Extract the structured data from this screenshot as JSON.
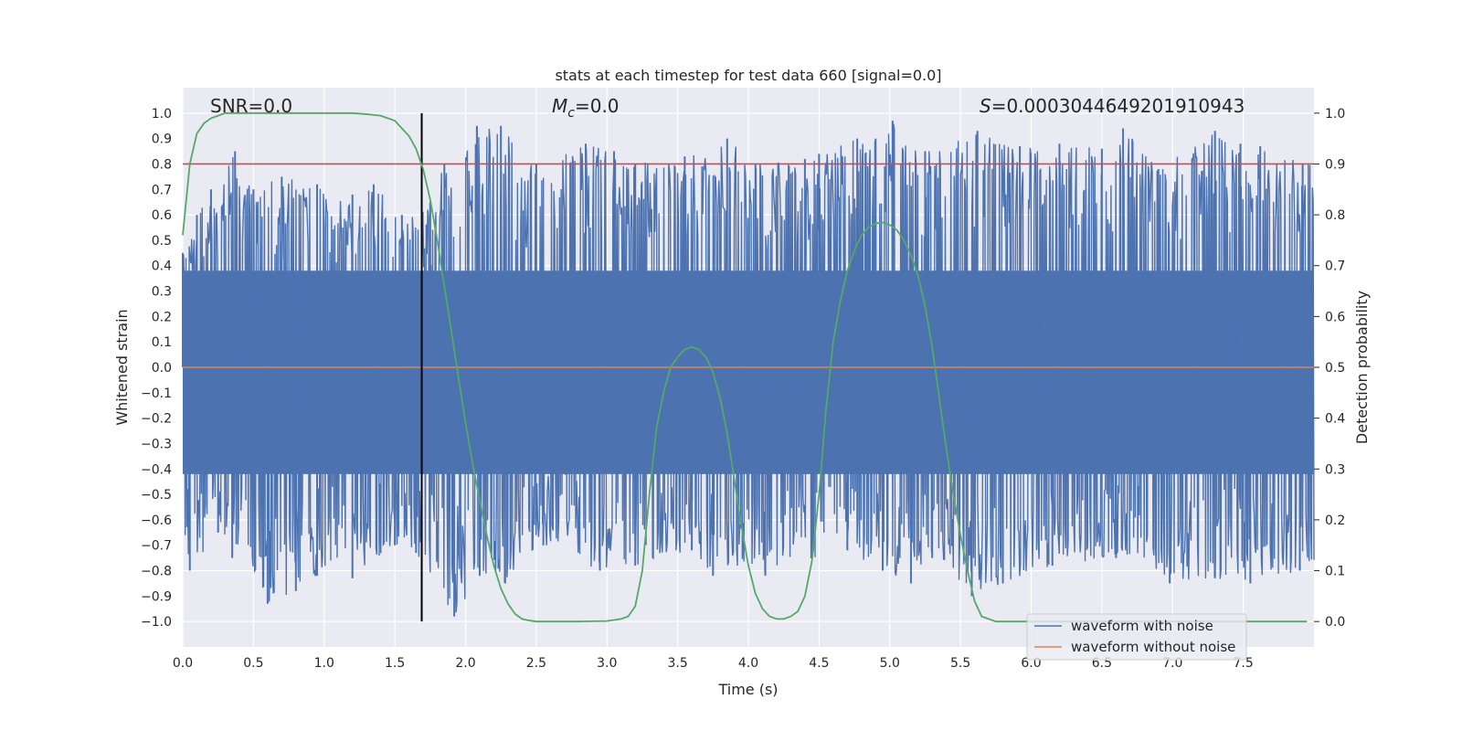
{
  "chart_data": {
    "type": "line",
    "title": "stats at each timestep for test data 660 [signal=0.0]",
    "xlabel": "Time (s)",
    "ylabel": "Whitened strain",
    "y2label": "Detection probability",
    "xlim": [
      0.0,
      8.0
    ],
    "ylim": [
      -1.1,
      1.1
    ],
    "y2lim": [
      -0.05,
      1.05
    ],
    "x_ticks": [
      0.0,
      0.5,
      1.0,
      1.5,
      2.0,
      2.5,
      3.0,
      3.5,
      4.0,
      4.5,
      5.0,
      5.5,
      6.0,
      6.5,
      7.0,
      7.5
    ],
    "x_tick_labels": [
      "0.0",
      "0.5",
      "1.0",
      "1.5",
      "2.0",
      "2.5",
      "3.0",
      "3.5",
      "4.0",
      "4.5",
      "5.0",
      "5.5",
      "6.0",
      "6.5",
      "7.0",
      "7.5"
    ],
    "y_ticks": [
      1.0,
      0.9,
      0.8,
      0.7,
      0.6,
      0.5,
      0.4,
      0.3,
      0.2,
      0.1,
      0.0,
      -0.1,
      -0.2,
      -0.3,
      -0.4,
      -0.5,
      -0.6,
      -0.7,
      -0.8,
      -0.9,
      -1.0
    ],
    "y_tick_labels": [
      "1.0",
      "0.9",
      "0.8",
      "0.7",
      "0.6",
      "0.5",
      "0.4",
      "0.3",
      "0.2",
      "0.1",
      "0.0",
      "−0.1",
      "−0.2",
      "−0.3",
      "−0.4",
      "−0.5",
      "−0.6",
      "−0.7",
      "−0.8",
      "−0.9",
      "−1.0"
    ],
    "y2_ticks": [
      1.0,
      0.9,
      0.8,
      0.7,
      0.6,
      0.5,
      0.4,
      0.3,
      0.2,
      0.1,
      0.0
    ],
    "y2_tick_labels": [
      "1.0",
      "0.9",
      "0.8",
      "0.7",
      "0.6",
      "0.5",
      "0.4",
      "0.3",
      "0.2",
      "0.1",
      "0.0"
    ],
    "grid": true,
    "legend": {
      "placement": "lower-right",
      "entries": [
        {
          "name": "waveform with noise",
          "color": "#4c72b0"
        },
        {
          "name": "waveform without noise",
          "color": "#dd8452"
        }
      ]
    },
    "annotations": {
      "snr": "SNR=0.0",
      "mc_symbol": "M",
      "mc_sub": "c",
      "mc_value": "=0.0",
      "s_symbol": "S",
      "s_value": "=0.0003044649201910943"
    },
    "threshold_prob": 0.9,
    "threshold_color": "#c44e52",
    "marker_time": 1.69,
    "marker_color": "#000000",
    "waveform_without_noise_value": 0.0,
    "noise_envelope": {
      "upper_peaks": [
        [
          0.0,
          0.45
        ],
        [
          0.1,
          0.6
        ],
        [
          0.2,
          0.7
        ],
        [
          0.37,
          0.85
        ],
        [
          0.5,
          0.7
        ],
        [
          0.7,
          0.75
        ],
        [
          0.95,
          0.72
        ],
        [
          1.2,
          0.68
        ],
        [
          1.35,
          0.72
        ],
        [
          1.55,
          0.6
        ],
        [
          1.75,
          0.65
        ],
        [
          1.85,
          0.8
        ],
        [
          2.08,
          0.95
        ],
        [
          2.25,
          0.95
        ],
        [
          2.5,
          0.8
        ],
        [
          2.85,
          0.88
        ],
        [
          3.05,
          0.85
        ],
        [
          3.2,
          0.8
        ],
        [
          3.55,
          0.83
        ],
        [
          3.85,
          0.9
        ],
        [
          4.05,
          0.8
        ],
        [
          4.4,
          0.82
        ],
        [
          4.5,
          0.84
        ],
        [
          4.77,
          0.9
        ],
        [
          4.9,
          0.9
        ],
        [
          5.02,
          0.97
        ],
        [
          5.25,
          0.85
        ],
        [
          5.62,
          0.93
        ],
        [
          5.92,
          0.87
        ],
        [
          6.2,
          0.88
        ],
        [
          6.5,
          0.86
        ],
        [
          6.65,
          0.94
        ],
        [
          6.9,
          0.78
        ],
        [
          7.3,
          0.93
        ],
        [
          7.48,
          0.88
        ],
        [
          7.62,
          0.87
        ],
        [
          7.92,
          0.8
        ]
      ],
      "lower_peaks": [
        [
          0.05,
          -0.8
        ],
        [
          0.25,
          -0.65
        ],
        [
          0.35,
          -0.75
        ],
        [
          0.6,
          -0.93
        ],
        [
          0.8,
          -0.88
        ],
        [
          0.95,
          -0.82
        ],
        [
          1.2,
          -0.83
        ],
        [
          1.5,
          -0.7
        ],
        [
          1.65,
          -0.73
        ],
        [
          1.92,
          -0.98
        ],
        [
          2.1,
          -0.82
        ],
        [
          2.28,
          -0.85
        ],
        [
          2.55,
          -0.7
        ],
        [
          2.95,
          -0.8
        ],
        [
          3.2,
          -0.78
        ],
        [
          3.6,
          -0.72
        ],
        [
          3.75,
          -0.82
        ],
        [
          4.12,
          -0.82
        ],
        [
          4.45,
          -0.75
        ],
        [
          4.7,
          -0.72
        ],
        [
          4.95,
          -0.8
        ],
        [
          5.15,
          -0.85
        ],
        [
          5.3,
          -0.75
        ],
        [
          5.58,
          -0.9
        ],
        [
          5.8,
          -0.85
        ],
        [
          6.15,
          -0.78
        ],
        [
          6.6,
          -0.75
        ],
        [
          6.98,
          -0.85
        ],
        [
          7.3,
          -0.83
        ],
        [
          7.55,
          -0.85
        ],
        [
          7.9,
          -0.8
        ]
      ]
    },
    "series": [
      {
        "name": "waveform with noise",
        "axis": "left",
        "color": "#4c72b0",
        "x": [],
        "y": []
      },
      {
        "name": "waveform without noise",
        "axis": "left",
        "color": "#dd8452",
        "x": [
          0.0,
          8.0
        ],
        "y": [
          0.0,
          0.0
        ]
      },
      {
        "axis": "right",
        "color": "#55a868",
        "x": [
          0.0,
          0.05,
          0.1,
          0.15,
          0.2,
          0.25,
          0.3,
          0.35,
          0.4,
          0.5,
          0.6,
          0.8,
          1.0,
          1.2,
          1.3,
          1.4,
          1.45,
          1.5,
          1.55,
          1.6,
          1.65,
          1.7,
          1.75,
          1.8,
          1.85,
          1.9,
          1.95,
          2.0,
          2.05,
          2.1,
          2.15,
          2.2,
          2.25,
          2.3,
          2.35,
          2.4,
          2.45,
          2.5,
          2.6,
          2.8,
          3.0,
          3.1,
          3.15,
          3.2,
          3.25,
          3.3,
          3.35,
          3.4,
          3.45,
          3.5,
          3.55,
          3.6,
          3.65,
          3.7,
          3.75,
          3.8,
          3.85,
          3.9,
          3.95,
          4.0,
          4.05,
          4.1,
          4.15,
          4.2,
          4.25,
          4.3,
          4.35,
          4.4,
          4.45,
          4.5,
          4.55,
          4.6,
          4.65,
          4.7,
          4.75,
          4.8,
          4.85,
          4.9,
          4.95,
          5.0,
          5.05,
          5.1,
          5.15,
          5.2,
          5.25,
          5.3,
          5.35,
          5.4,
          5.45,
          5.5,
          5.55,
          5.6,
          5.65,
          5.7,
          5.75,
          5.8,
          5.85,
          5.9,
          6.0,
          6.5,
          7.0,
          7.5,
          7.95
        ],
        "y": [
          0.76,
          0.9,
          0.96,
          0.98,
          0.99,
          0.995,
          1.0,
          1.0,
          1.0,
          1.0,
          1.0,
          1.0,
          1.0,
          1.0,
          0.998,
          0.995,
          0.99,
          0.985,
          0.97,
          0.955,
          0.93,
          0.89,
          0.83,
          0.75,
          0.66,
          0.57,
          0.48,
          0.39,
          0.31,
          0.24,
          0.17,
          0.11,
          0.065,
          0.035,
          0.015,
          0.005,
          0.002,
          0.0,
          0.0,
          0.0,
          0.001,
          0.005,
          0.01,
          0.03,
          0.1,
          0.25,
          0.38,
          0.45,
          0.5,
          0.52,
          0.535,
          0.54,
          0.535,
          0.52,
          0.49,
          0.44,
          0.37,
          0.28,
          0.19,
          0.11,
          0.055,
          0.025,
          0.01,
          0.005,
          0.005,
          0.01,
          0.02,
          0.05,
          0.12,
          0.25,
          0.42,
          0.55,
          0.63,
          0.69,
          0.73,
          0.76,
          0.775,
          0.783,
          0.785,
          0.78,
          0.77,
          0.75,
          0.72,
          0.68,
          0.62,
          0.54,
          0.44,
          0.34,
          0.25,
          0.17,
          0.1,
          0.04,
          0.01,
          0.005,
          0.0,
          0.0,
          0.0,
          0.0,
          0.0,
          0.0,
          0.0,
          0.0,
          0.0
        ]
      }
    ]
  }
}
